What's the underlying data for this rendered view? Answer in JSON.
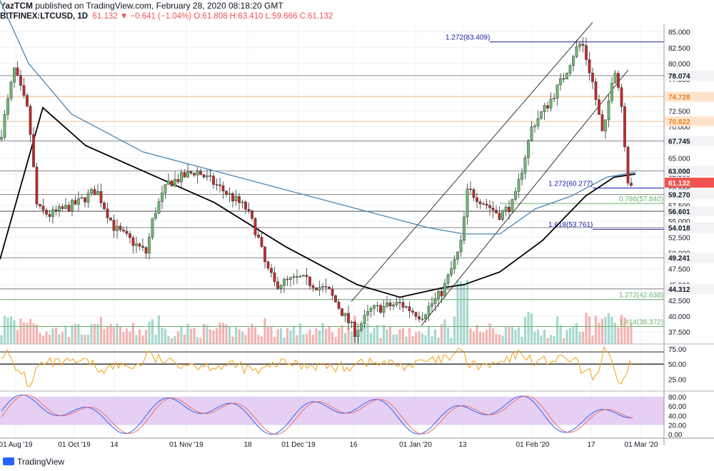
{
  "header": {
    "author": "YazTCM",
    "published_text": "published on TradingView.com, February 28, 2020 08:18:20 GMT",
    "symbol": "BITFINEX:LTCUSD, 1D",
    "ohlc_text": "61.132 ▼ −0.641 (−1.04%) O:61.808 H:63.410 L:59.666 C:61.132"
  },
  "footer": {
    "logo_text": "TradingView"
  },
  "colors": {
    "up": "#26a69a",
    "down": "#ef5350",
    "candle_up": "#6fbf73",
    "candle_down": "#c62828",
    "ma_black": "#000000",
    "ma_blue": "#4a86b4",
    "fib_blue": "#1a1aa6",
    "fib_green": "#6bb36b",
    "rsi": "#f5a623",
    "stoch_band": "#e1c8f2"
  },
  "chart_data": {
    "type": "candlestick",
    "price_axis": {
      "ticks": [
        "85.000",
        "82.500",
        "80.000",
        "77.500",
        "75.000",
        "72.500",
        "70.000",
        "67.500",
        "65.000",
        "62.500",
        "60.000",
        "57.500",
        "55.000",
        "52.500",
        "50.000",
        "47.500",
        "45.000",
        "42.500",
        "40.000",
        "37.500"
      ],
      "tick_values": [
        85,
        82.5,
        80,
        77.5,
        75,
        72.5,
        70,
        67.5,
        65,
        62.5,
        60,
        57.5,
        55,
        52.5,
        50,
        47.5,
        45,
        42.5,
        40,
        37.5
      ],
      "range": [
        35.6,
        86.2
      ]
    },
    "level_labels": [
      {
        "text": "78.074",
        "value": 78.074,
        "style": "gray"
      },
      {
        "text": "74.728",
        "value": 74.728,
        "style": "orange"
      },
      {
        "text": "70.822",
        "value": 70.822,
        "style": "orange"
      },
      {
        "text": "67.745",
        "value": 67.745,
        "style": "gray"
      },
      {
        "text": "63.000",
        "value": 63.0,
        "style": "gray"
      },
      {
        "text": "61.132",
        "value": 61.132,
        "style": "red"
      },
      {
        "text": "59.270",
        "value": 59.27,
        "style": "gray"
      },
      {
        "text": "56.601",
        "value": 56.601,
        "style": "gray"
      },
      {
        "text": "54.018",
        "value": 54.018,
        "style": "gray"
      },
      {
        "text": "49.241",
        "value": 49.241,
        "style": "gray"
      },
      {
        "text": "44.312",
        "value": 44.312,
        "style": "gray"
      }
    ],
    "fib_labels": [
      {
        "text": "1.272(83.409)",
        "value": 83.409,
        "color": "blue"
      },
      {
        "text": "1.272(60.277)",
        "value": 60.277,
        "color": "blue"
      },
      {
        "text": "0.786(57.840)",
        "value": 57.84,
        "color": "green"
      },
      {
        "text": "1.618(53.761)",
        "value": 53.761,
        "color": "blue"
      },
      {
        "text": "1.272(42.638)",
        "value": 42.638,
        "color": "green"
      },
      {
        "text": "1.414(38.372)",
        "value": 38.372,
        "color": "green"
      }
    ],
    "time_axis": [
      "01 Aug '19",
      "01 Oct '19",
      "14",
      "01 Nov '19",
      "18",
      "01 Dec '19",
      "16",
      "01 Jan '20",
      "13",
      "01 Feb '20",
      "17",
      "01 Mar '20"
    ],
    "rsi": {
      "ticks": [
        "75.00",
        "50.00",
        "25.00"
      ],
      "tick_values": [
        75,
        50,
        25
      ],
      "range": [
        8,
        83
      ],
      "band": [
        30,
        70
      ]
    },
    "stoch": {
      "ticks": [
        "80.00",
        "60.00",
        "40.00",
        "20.00",
        "0.00"
      ],
      "tick_values": [
        80,
        60,
        40,
        20,
        0
      ],
      "range": [
        -8,
        92
      ],
      "band": [
        20,
        80
      ]
    }
  }
}
